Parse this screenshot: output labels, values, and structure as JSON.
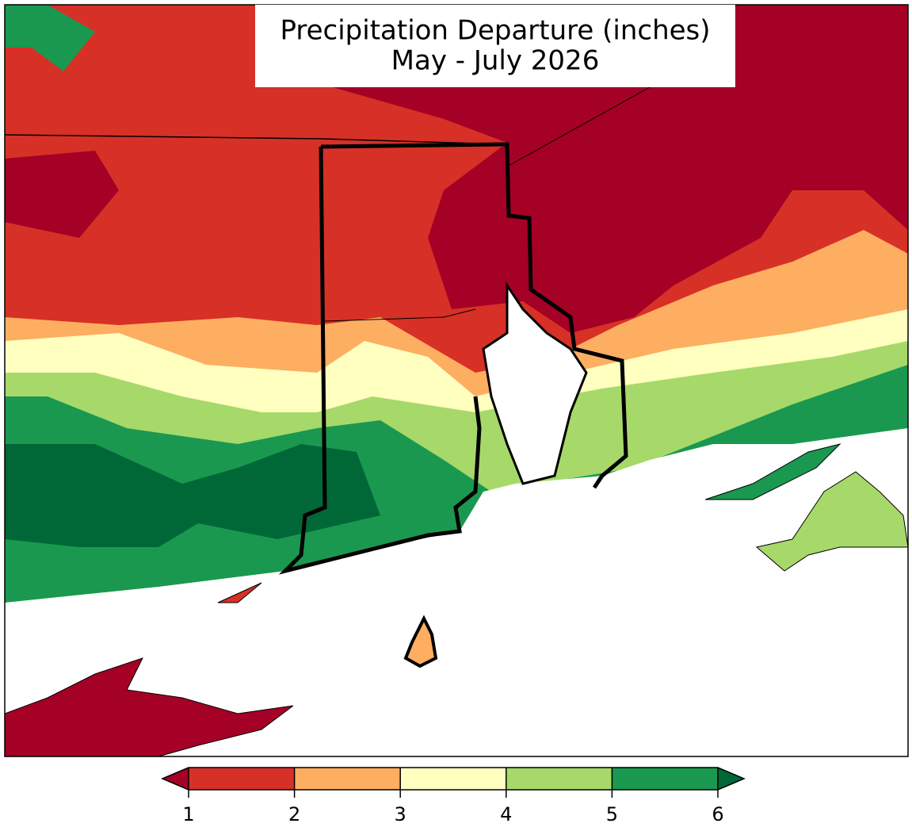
{
  "title": {
    "line1": "Precipitation Departure (inches)",
    "line2": "May - July 2026"
  },
  "colorbar": {
    "ticks": [
      1,
      2,
      3,
      4,
      5,
      6
    ],
    "colors": [
      "#d73027",
      "#fdae61",
      "#ffffbf",
      "#a6d96a",
      "#1a9850"
    ],
    "under_color": "#a50026",
    "over_color": "#006837"
  }
}
